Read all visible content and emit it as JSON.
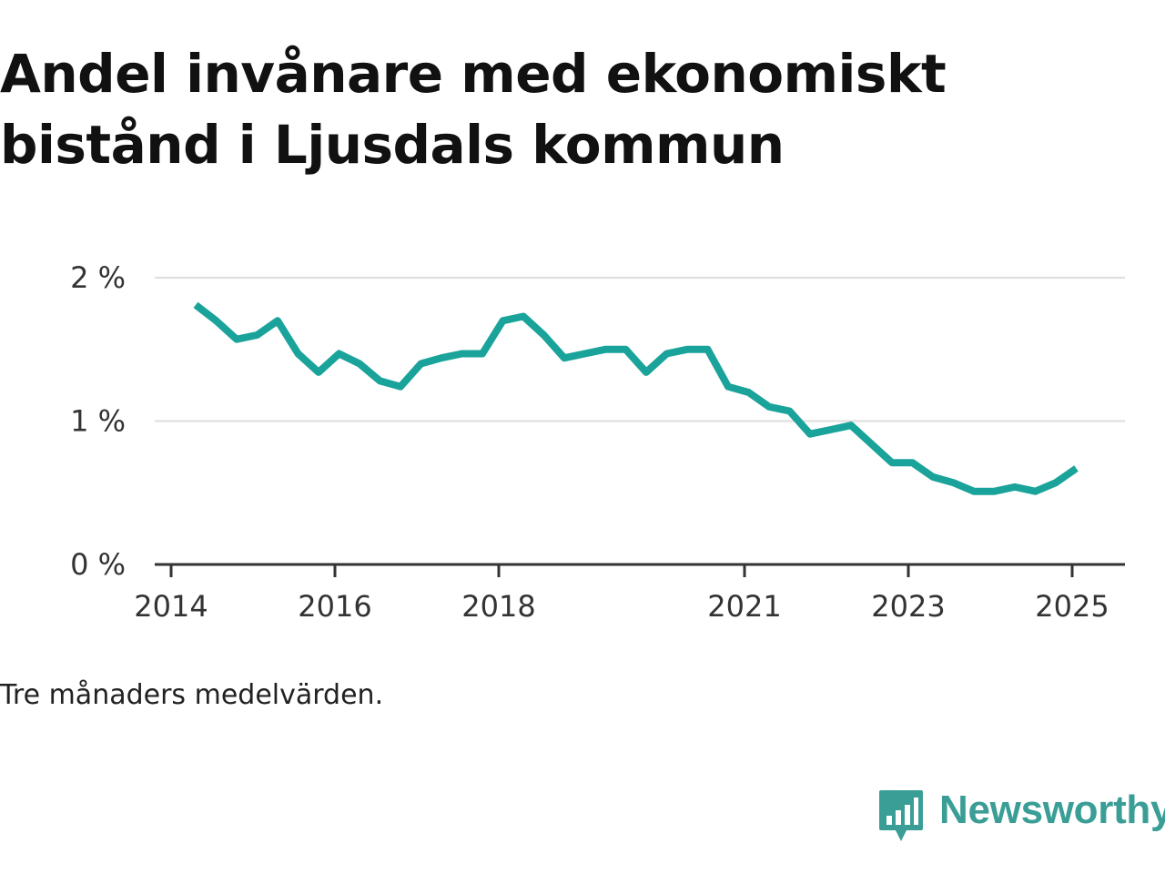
{
  "title": "Andel invånare med ekonomiskt bistånd i Ljusdals kommun",
  "note": "Tre månaders medelvärden.",
  "brand": {
    "name": "Newsworthy",
    "icon": "newsworthy-logo-icon",
    "color": "#3a9e96"
  },
  "colors": {
    "line": "#1aa39a",
    "grid": "#dddddd",
    "axis": "#333333"
  },
  "chart_data": {
    "type": "line",
    "title": "Andel invånare med ekonomiskt bistånd i Ljusdals kommun",
    "xlabel": "",
    "ylabel": "",
    "x_ticks": [
      2014,
      2016,
      2018,
      2021,
      2023,
      2025
    ],
    "y_ticks": [
      {
        "value": 0,
        "label": "0 %"
      },
      {
        "value": 1,
        "label": "1 %"
      },
      {
        "value": 2,
        "label": "2 %"
      }
    ],
    "ylim": [
      0,
      2
    ],
    "xlim": [
      2013.99,
      2025.64
    ],
    "grid": true,
    "legend": "none",
    "series": [
      {
        "x": [
          2014.3,
          2014.55,
          2014.8,
          2015.05,
          2015.3,
          2015.55,
          2015.8,
          2016.05,
          2016.3,
          2016.55,
          2016.8,
          2017.05,
          2017.3,
          2017.55,
          2017.8,
          2018.05,
          2018.3,
          2018.55,
          2018.8,
          2019.05,
          2019.3,
          2019.55,
          2019.8,
          2020.05,
          2020.3,
          2020.55,
          2020.8,
          2021.05,
          2021.3,
          2021.55,
          2021.8,
          2022.05,
          2022.3,
          2022.55,
          2022.8,
          2023.05,
          2023.3,
          2023.55,
          2023.8,
          2024.05,
          2024.3,
          2024.55,
          2024.8,
          2025.05
        ],
        "y": [
          1.81,
          1.7,
          1.57,
          1.6,
          1.7,
          1.47,
          1.34,
          1.47,
          1.4,
          1.28,
          1.24,
          1.4,
          1.44,
          1.47,
          1.47,
          1.7,
          1.73,
          1.6,
          1.44,
          1.47,
          1.5,
          1.5,
          1.34,
          1.47,
          1.5,
          1.5,
          1.24,
          1.2,
          1.1,
          1.07,
          0.91,
          0.94,
          0.97,
          0.84,
          0.71,
          0.71,
          0.61,
          0.57,
          0.51,
          0.51,
          0.54,
          0.51,
          0.57,
          0.67
        ]
      }
    ]
  }
}
